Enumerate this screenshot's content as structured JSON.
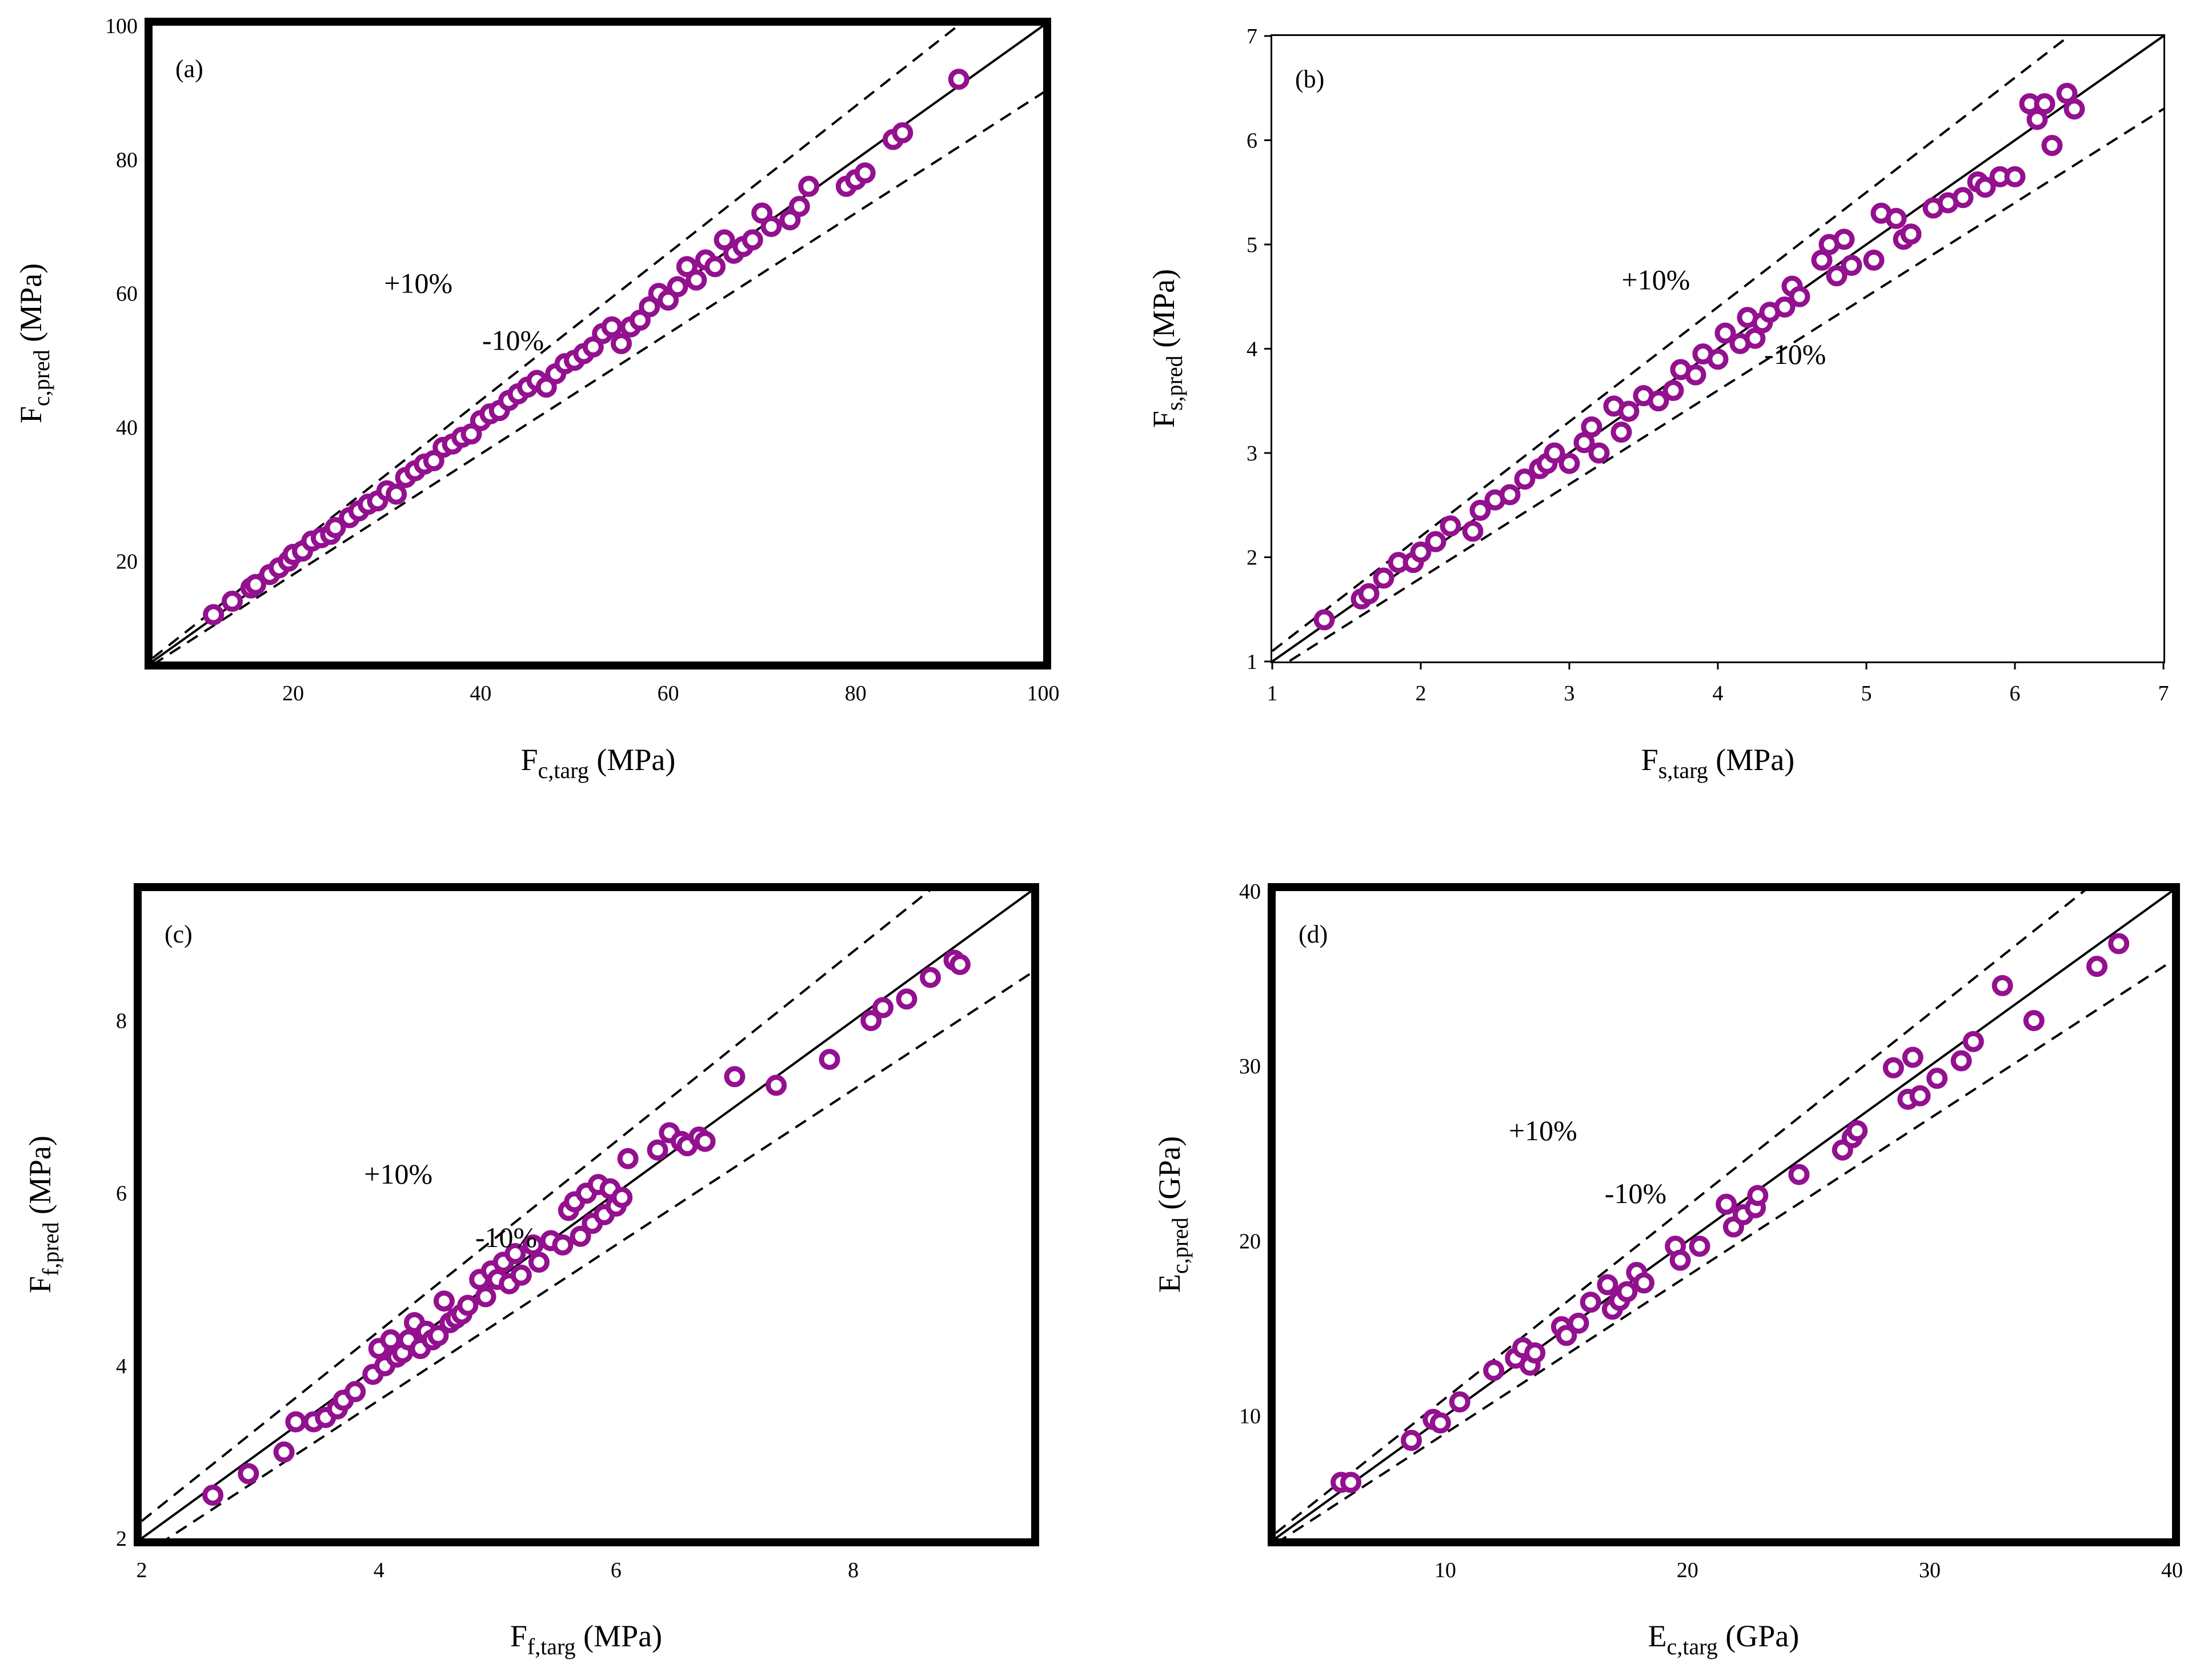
{
  "colors": {
    "marker": "#93108f",
    "line": "#000000",
    "frame": "#000000"
  },
  "chart_data": [
    {
      "type": "scatter",
      "panel_label": "(a)",
      "xlabel": {
        "main": "F",
        "sub": "c,targ",
        "unit": " (MPa)"
      },
      "ylabel": {
        "main": "F",
        "sub": "c,pred",
        "unit": " (MPa)"
      },
      "xlim": [
        5,
        100
      ],
      "ylim": [
        5,
        100
      ],
      "xticks": [
        20,
        40,
        60,
        80,
        100
      ],
      "yticks": [
        20,
        40,
        60,
        80,
        100
      ],
      "plus_label": "+10%",
      "minus_label": "-10%",
      "x": [
        11.5,
        13.5,
        15.5,
        16,
        17.5,
        18.5,
        19.5,
        20,
        21,
        22,
        23,
        24,
        24.5,
        26,
        27,
        28,
        29,
        30,
        31,
        32,
        33,
        34,
        35,
        36,
        37,
        38,
        39,
        40,
        41,
        42,
        43,
        44,
        45,
        46,
        47,
        48,
        49,
        50,
        51,
        52,
        53,
        54,
        55,
        56,
        57,
        58,
        59,
        60,
        61,
        62,
        63,
        64,
        65,
        66,
        67,
        68,
        69,
        70,
        71,
        73,
        74,
        75,
        79,
        80,
        81,
        84,
        85,
        91
      ],
      "y": [
        12,
        14,
        16,
        16.5,
        18,
        19,
        20,
        21,
        21.5,
        23,
        23.5,
        24,
        25,
        26.5,
        27.5,
        28.5,
        29,
        30.5,
        30,
        32.5,
        33.5,
        34.5,
        35,
        37,
        37.5,
        38.5,
        39,
        41,
        42,
        42.5,
        44,
        45,
        46,
        47,
        46,
        48,
        49.5,
        50,
        51,
        52,
        54,
        55,
        52.5,
        55,
        56,
        58,
        60,
        59,
        61,
        64,
        62,
        65,
        64,
        68,
        66,
        67,
        68,
        72,
        70,
        71,
        73,
        76,
        76,
        77,
        78,
        83,
        84,
        92
      ]
    },
    {
      "type": "scatter",
      "panel_label": "(b)",
      "xlabel": {
        "main": "F",
        "sub": "s,targ",
        "unit": " (MPa)"
      },
      "ylabel": {
        "main": "F",
        "sub": "s,pred",
        "unit": " (MPa)"
      },
      "xlim": [
        1,
        7
      ],
      "ylim": [
        1,
        7
      ],
      "xticks": [
        1,
        2,
        3,
        4,
        5,
        6,
        7
      ],
      "yticks": [
        1,
        2,
        3,
        4,
        5,
        6,
        7
      ],
      "plus_label": "+10%",
      "minus_label": "-10%",
      "x": [
        1.35,
        1.6,
        1.65,
        1.75,
        1.85,
        1.95,
        2.0,
        2.1,
        2.2,
        2.35,
        2.4,
        2.5,
        2.6,
        2.7,
        2.8,
        2.85,
        2.9,
        3.0,
        3.1,
        3.15,
        3.2,
        3.3,
        3.35,
        3.4,
        3.5,
        3.6,
        3.7,
        3.75,
        3.85,
        3.9,
        4.0,
        4.05,
        4.15,
        4.2,
        4.25,
        4.3,
        4.35,
        4.45,
        4.5,
        4.55,
        4.7,
        4.75,
        4.8,
        4.85,
        4.9,
        5.05,
        5.1,
        5.2,
        5.25,
        5.3,
        5.45,
        5.55,
        5.65,
        5.75,
        5.8,
        5.9,
        6.0,
        6.1,
        6.15,
        6.2,
        6.25,
        6.35,
        6.4
      ],
      "y": [
        1.4,
        1.6,
        1.65,
        1.8,
        1.95,
        1.95,
        2.05,
        2.15,
        2.3,
        2.25,
        2.45,
        2.55,
        2.6,
        2.75,
        2.85,
        2.9,
        3.0,
        2.9,
        3.1,
        3.25,
        3.0,
        3.45,
        3.2,
        3.4,
        3.55,
        3.5,
        3.6,
        3.8,
        3.75,
        3.95,
        3.9,
        4.15,
        4.05,
        4.3,
        4.1,
        4.25,
        4.35,
        4.4,
        4.6,
        4.5,
        4.85,
        5.0,
        4.7,
        5.05,
        4.8,
        4.85,
        5.3,
        5.25,
        5.05,
        5.1,
        5.35,
        5.4,
        5.45,
        5.6,
        5.55,
        5.65,
        5.65,
        6.35,
        6.2,
        6.35,
        5.95,
        6.45,
        6.3
      ]
    },
    {
      "type": "scatter",
      "panel_label": "(c)",
      "xlabel": {
        "main": "F",
        "sub": "f,targ",
        "unit": " (MPa)"
      },
      "ylabel": {
        "main": "F",
        "sub": "f,pred",
        "unit": " (MPa)"
      },
      "xlim": [
        2,
        9.5
      ],
      "ylim": [
        2,
        9.5
      ],
      "xticks": [
        2,
        4,
        6,
        8
      ],
      "yticks": [
        2,
        4,
        6,
        8
      ],
      "plus_label": "+10%",
      "minus_label": "-10%",
      "x": [
        2.6,
        2.9,
        3.2,
        3.3,
        3.45,
        3.55,
        3.65,
        3.7,
        3.8,
        3.95,
        4.0,
        4.05,
        4.1,
        4.15,
        4.2,
        4.25,
        4.3,
        4.35,
        4.4,
        4.45,
        4.5,
        4.55,
        4.6,
        4.65,
        4.7,
        4.75,
        4.85,
        4.9,
        4.95,
        5.0,
        5.05,
        5.1,
        5.15,
        5.2,
        5.3,
        5.35,
        5.45,
        5.55,
        5.6,
        5.65,
        5.7,
        5.75,
        5.8,
        5.85,
        5.9,
        5.95,
        6.0,
        6.05,
        6.1,
        6.35,
        6.45,
        6.55,
        6.6,
        6.7,
        6.75,
        7.0,
        7.35,
        7.8,
        8.15,
        8.25,
        8.45,
        8.65,
        8.85,
        8.9
      ],
      "y": [
        2.5,
        2.75,
        3.0,
        3.35,
        3.35,
        3.4,
        3.5,
        3.6,
        3.7,
        3.9,
        4.2,
        4.0,
        4.3,
        4.1,
        4.15,
        4.3,
        4.5,
        4.2,
        4.4,
        4.3,
        4.35,
        4.75,
        4.5,
        4.55,
        4.6,
        4.7,
        5.0,
        4.8,
        5.1,
        5.0,
        5.2,
        4.95,
        5.3,
        5.05,
        5.4,
        5.2,
        5.45,
        5.4,
        5.8,
        5.9,
        5.5,
        6.0,
        5.65,
        6.1,
        5.75,
        6.05,
        5.85,
        5.95,
        6.4,
        6.5,
        6.7,
        6.6,
        6.55,
        6.65,
        6.6,
        7.35,
        7.25,
        7.55,
        8.0,
        8.15,
        8.25,
        8.5,
        8.7,
        8.65
      ]
    },
    {
      "type": "scatter",
      "panel_label": "(d)",
      "xlabel": {
        "main": "E",
        "sub": "c,targ",
        "unit": " (GPa)"
      },
      "ylabel": {
        "main": "E",
        "sub": "c,pred",
        "unit": " (GPa)"
      },
      "xlim": [
        3,
        40
      ],
      "ylim": [
        3,
        40
      ],
      "xticks": [
        10,
        20,
        30,
        40
      ],
      "yticks": [
        10,
        20,
        30,
        40
      ],
      "plus_label": "+10%",
      "minus_label": "-10%",
      "x": [
        5.7,
        6.1,
        8.6,
        9.5,
        9.8,
        10.6,
        12.0,
        12.9,
        13.2,
        13.5,
        13.7,
        14.8,
        15.0,
        15.5,
        16.0,
        16.7,
        16.9,
        17.2,
        17.5,
        17.9,
        18.2,
        19.5,
        19.7,
        20.5,
        21.6,
        21.9,
        22.3,
        22.8,
        22.9,
        24.6,
        26.4,
        26.8,
        27.0,
        28.5,
        29.1,
        29.3,
        29.6,
        30.3,
        31.3,
        31.8,
        33.0,
        34.3,
        36.9,
        37.8
      ],
      "y": [
        6.2,
        6.2,
        8.6,
        9.8,
        9.6,
        10.8,
        12.6,
        13.3,
        13.9,
        12.9,
        13.6,
        15.1,
        14.6,
        15.3,
        16.5,
        17.5,
        16.1,
        16.6,
        17.1,
        18.2,
        17.6,
        19.7,
        18.9,
        19.7,
        22.1,
        20.8,
        21.5,
        21.9,
        22.6,
        23.8,
        25.2,
        25.9,
        26.3,
        29.9,
        28.1,
        30.5,
        28.3,
        29.3,
        30.3,
        31.4,
        34.6,
        32.6,
        35.7,
        37.0
      ]
    }
  ]
}
